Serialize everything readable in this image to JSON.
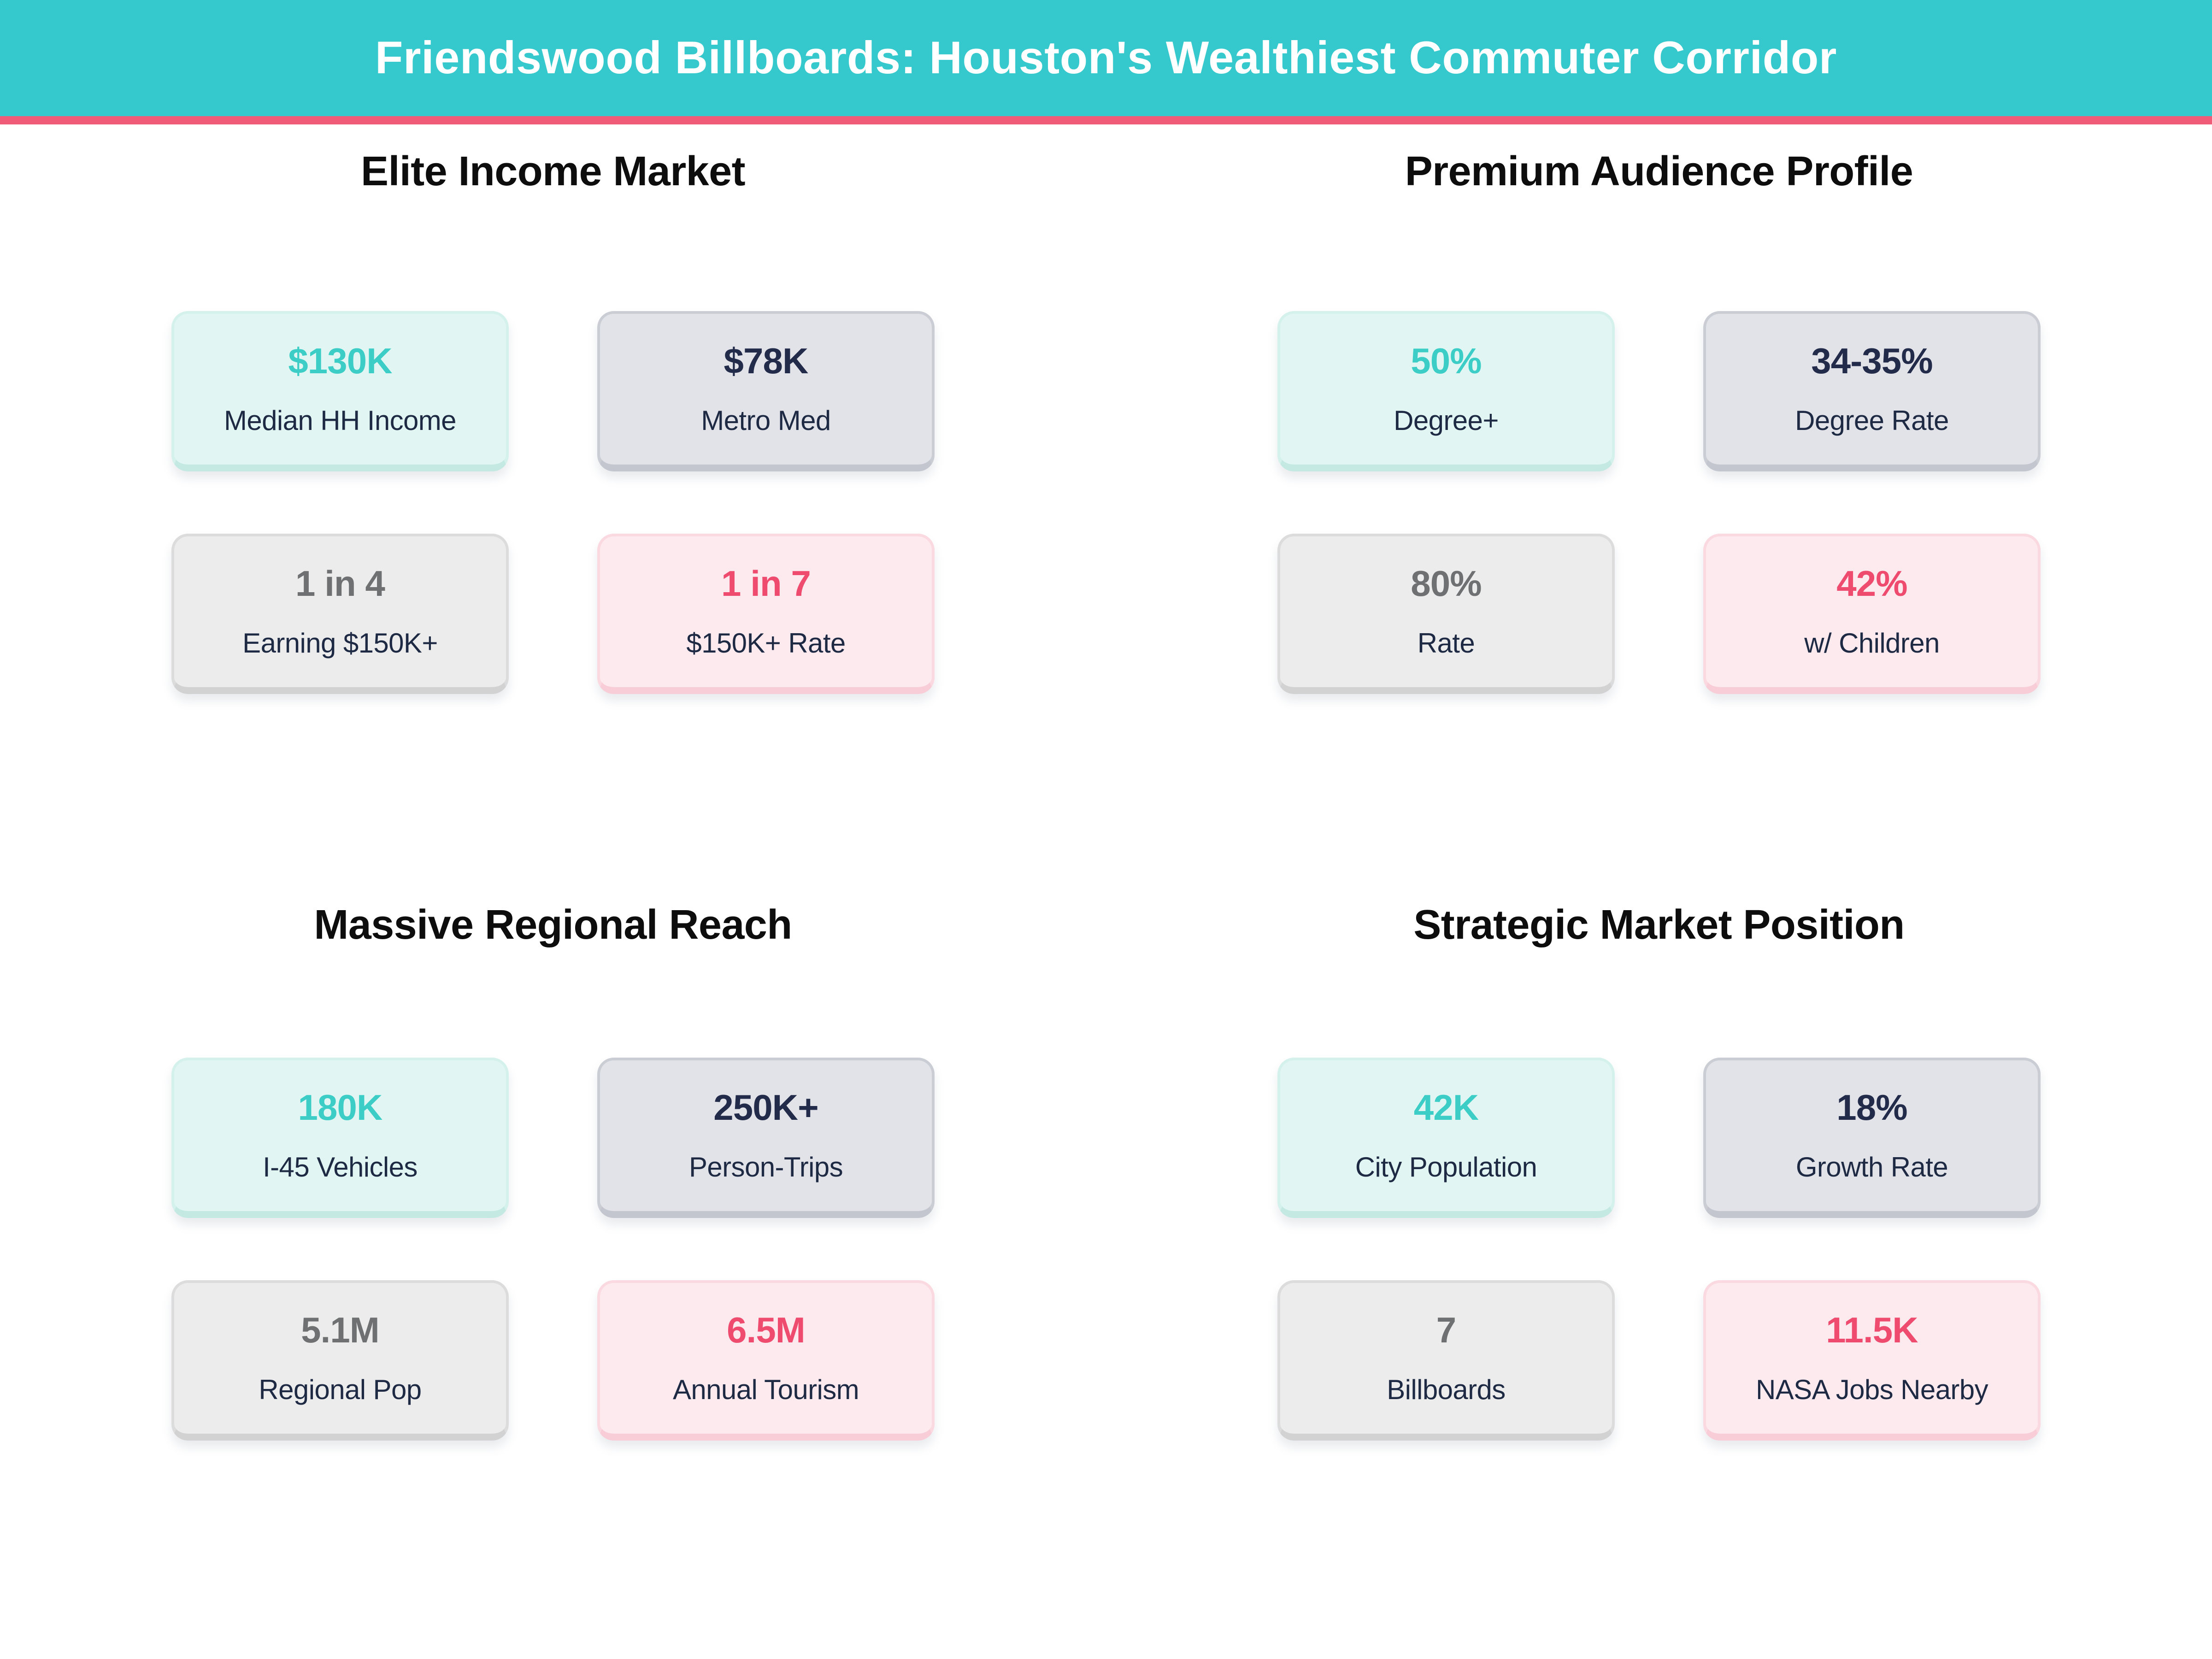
{
  "header": {
    "title": "Friendswood Billboards: Houston's Wealthiest Commuter Corridor"
  },
  "colors": {
    "header_bg": "#35c8cc",
    "header_accent_strip": "#f05c77",
    "teal_value": "#3bcdc6",
    "navy_value": "#232b4a",
    "gray_value": "#6e7071",
    "pink_value": "#ee4b6e",
    "label_text": "#1e2a44",
    "mint_card_bg": "#e1f6f2",
    "slate_card_bg": "#e2e3e8",
    "plain_card_bg": "#ececec",
    "pink_card_bg": "#fdeaee"
  },
  "sections": [
    {
      "title": "Elite Income Market",
      "cards": [
        {
          "value": "$130K",
          "label": "Median HH Income"
        },
        {
          "value": "$78K",
          "label": "Metro Med"
        },
        {
          "value": "1 in 4",
          "label": "Earning $150K+"
        },
        {
          "value": "1 in 7",
          "label": "$150K+ Rate"
        }
      ]
    },
    {
      "title": "Premium Audience Profile",
      "cards": [
        {
          "value": "50%",
          "label": "Degree+"
        },
        {
          "value": "34-35%",
          "label": "Degree Rate"
        },
        {
          "value": "80%",
          "label": "Rate"
        },
        {
          "value": "42%",
          "label": "w/ Children"
        }
      ]
    },
    {
      "title": "Massive Regional Reach",
      "cards": [
        {
          "value": "180K",
          "label": "I-45 Vehicles"
        },
        {
          "value": "250K+",
          "label": "Person-Trips"
        },
        {
          "value": "5.1M",
          "label": "Regional Pop"
        },
        {
          "value": "6.5M",
          "label": "Annual Tourism"
        }
      ]
    },
    {
      "title": "Strategic Market Position",
      "cards": [
        {
          "value": "42K",
          "label": "City Population"
        },
        {
          "value": "18%",
          "label": "Growth Rate"
        },
        {
          "value": "7",
          "label": "Billboards"
        },
        {
          "value": "11.5K",
          "label": "NASA Jobs Nearby"
        }
      ]
    }
  ],
  "chart_data": {
    "type": "table",
    "title": "Friendswood Billboards: Houston's Wealthiest Commuter Corridor",
    "groups": [
      {
        "group": "Elite Income Market",
        "stats": [
          {
            "metric": "Median HH Income",
            "value": "$130K"
          },
          {
            "metric": "Metro Med",
            "value": "$78K"
          },
          {
            "metric": "Earning $150K+",
            "value": "1 in 4"
          },
          {
            "metric": "$150K+ Rate",
            "value": "1 in 7"
          }
        ]
      },
      {
        "group": "Premium Audience Profile",
        "stats": [
          {
            "metric": "Degree+",
            "value": "50%"
          },
          {
            "metric": "Degree Rate",
            "value": "34-35%"
          },
          {
            "metric": "Rate",
            "value": "80%"
          },
          {
            "metric": "w/ Children",
            "value": "42%"
          }
        ]
      },
      {
        "group": "Massive Regional Reach",
        "stats": [
          {
            "metric": "I-45 Vehicles",
            "value": "180K"
          },
          {
            "metric": "Person-Trips",
            "value": "250K+"
          },
          {
            "metric": "Regional Pop",
            "value": "5.1M"
          },
          {
            "metric": "Annual Tourism",
            "value": "6.5M"
          }
        ]
      },
      {
        "group": "Strategic Market Position",
        "stats": [
          {
            "metric": "City Population",
            "value": "42K"
          },
          {
            "metric": "Growth Rate",
            "value": "18%"
          },
          {
            "metric": "Billboards",
            "value": "7"
          },
          {
            "metric": "NASA Jobs Nearby",
            "value": "11.5K"
          }
        ]
      }
    ]
  }
}
